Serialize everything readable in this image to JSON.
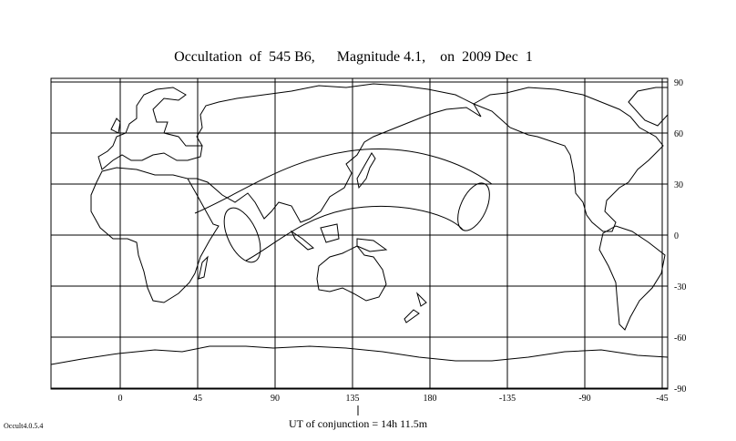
{
  "title": "Occultation  of  545 B6,      Magnitude 4.1,    on  2009 Dec  1",
  "map": {
    "lon_labels": [
      "0",
      "45",
      "90",
      "135",
      "180",
      "-135",
      "-90",
      "-45"
    ],
    "lat_labels": [
      "90",
      "60",
      "30",
      "0",
      "-30",
      "-60",
      "-90"
    ]
  },
  "conjunction": "UT of conjunction = 14h 11.5m",
  "version": "Occult4.0.5.4"
}
